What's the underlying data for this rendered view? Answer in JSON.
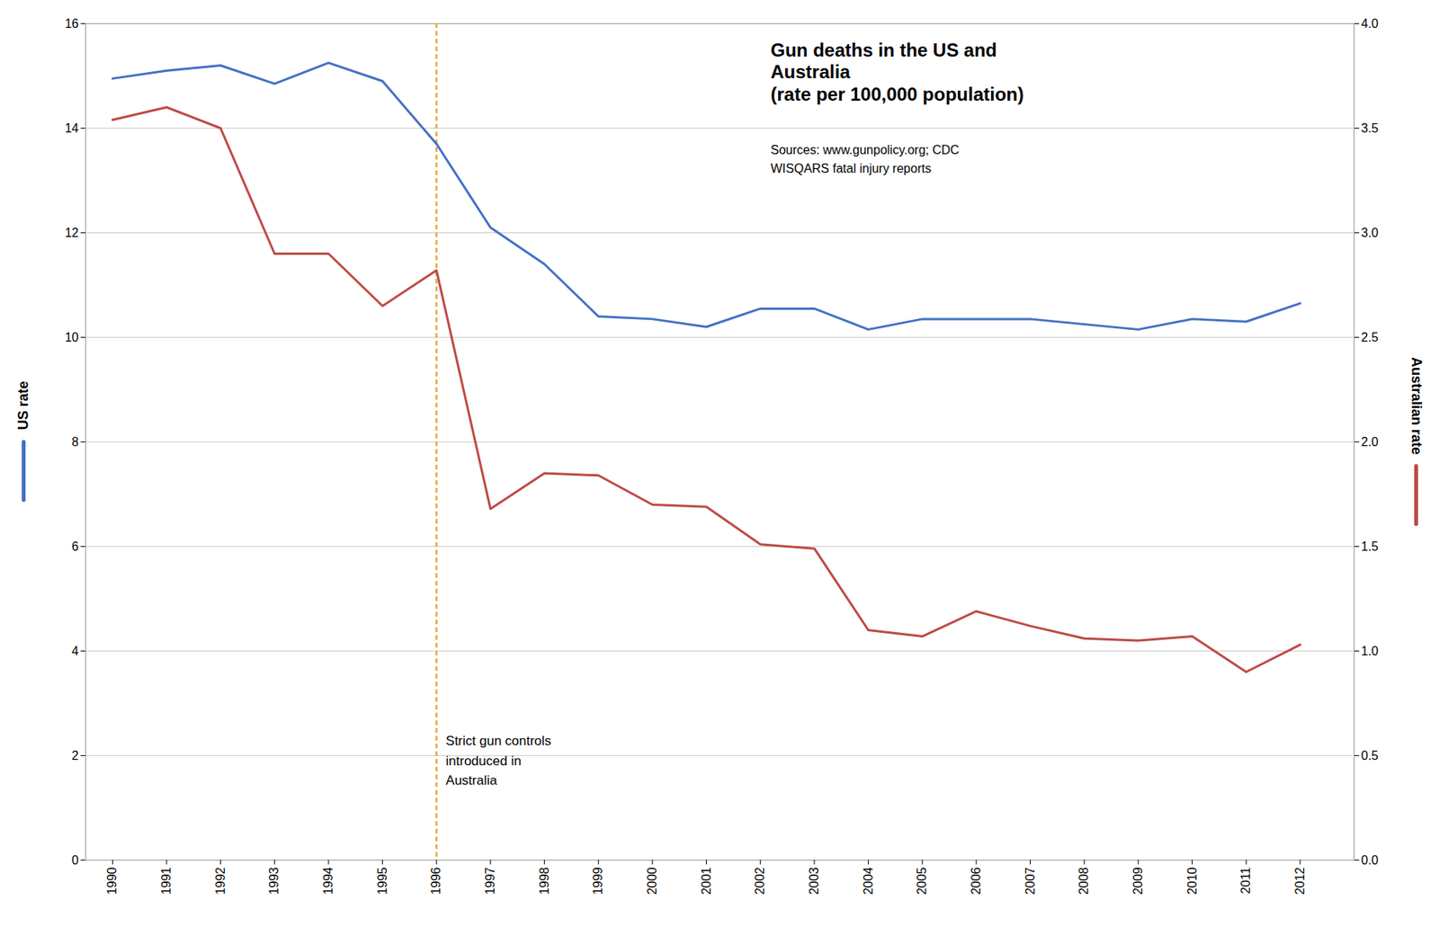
{
  "chart_data": {
    "type": "line",
    "title": "Gun deaths in the US and\nAustralia\n(rate per 100,000 population)",
    "subtitle": "Sources: www.gunpolicy.org; CDC\nWISQARS fatal injury reports",
    "x": [
      1990,
      1991,
      1992,
      1993,
      1994,
      1995,
      1996,
      1997,
      1998,
      1999,
      2000,
      2001,
      2002,
      2003,
      2004,
      2005,
      2006,
      2007,
      2008,
      2009,
      2010,
      2011,
      2012
    ],
    "xlim": [
      1989.5,
      2013.0
    ],
    "xticks": [
      1990,
      1991,
      1992,
      1993,
      1994,
      1995,
      1996,
      1997,
      1998,
      1999,
      2000,
      2001,
      2002,
      2003,
      2004,
      2005,
      2006,
      2007,
      2008,
      2009,
      2010,
      2011,
      2012
    ],
    "ylim": [
      0,
      16
    ],
    "yticks": [
      0,
      2,
      4,
      6,
      8,
      10,
      12,
      14,
      16
    ],
    "y2lim": [
      0,
      4
    ],
    "y2ticks": [
      {
        "value": 0,
        "label": "0.0"
      },
      0.5,
      {
        "value": 1.0,
        "label": "1.0"
      },
      1.5,
      {
        "value": 2.0,
        "label": "2.0"
      },
      2.5,
      {
        "value": 3.0,
        "label": "3.0"
      },
      3.5,
      {
        "value": 4.0,
        "label": "4.0"
      }
    ],
    "grid": true,
    "series": [
      {
        "name": "US rate",
        "color": "#4472C4",
        "axis": "y",
        "values": [
          14.95,
          15.1,
          15.2,
          14.85,
          15.25,
          14.9,
          13.7,
          12.1,
          11.4,
          10.4,
          10.35,
          10.2,
          10.55,
          10.55,
          10.15,
          10.35,
          10.35,
          10.35,
          10.25,
          10.15,
          10.35,
          10.3,
          10.65
        ]
      },
      {
        "name": "Australian rate",
        "color": "#BE4B48",
        "axis": "y2",
        "values": [
          3.54,
          3.6,
          3.5,
          2.9,
          2.9,
          2.65,
          2.82,
          1.68,
          1.85,
          1.84,
          1.7,
          1.69,
          1.51,
          1.49,
          1.1,
          1.07,
          1.19,
          1.12,
          1.06,
          1.05,
          1.07,
          0.9,
          1.03
        ]
      }
    ],
    "annotations": [
      {
        "text": "Strict gun controls\nintroduced in\nAustralia",
        "x": 1996,
        "color": "#E8A838",
        "line_style": "dashed"
      }
    ]
  }
}
